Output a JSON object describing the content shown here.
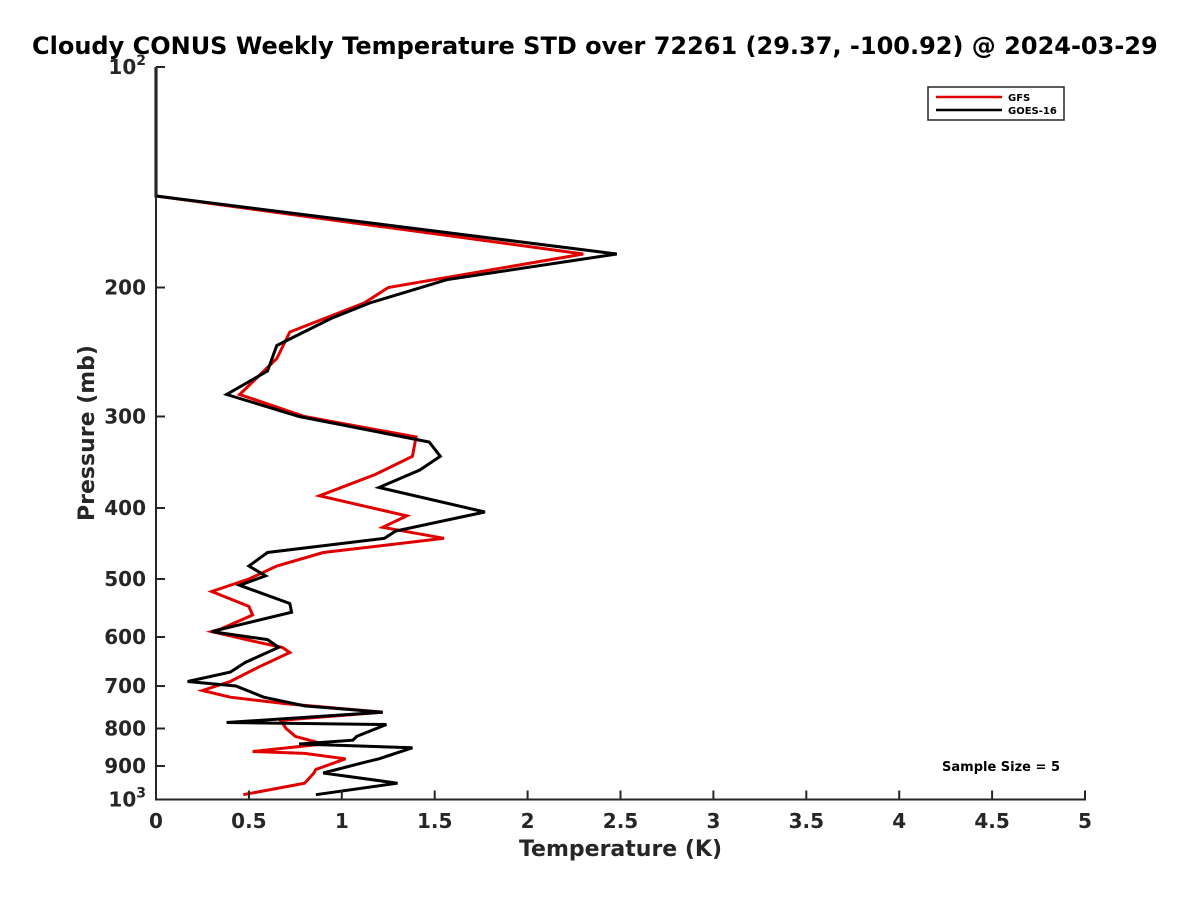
{
  "chart_data": {
    "type": "line",
    "title": "Cloudy CONUS Weekly Temperature STD over 72261 (29.37, -100.92) @ 2024-03-29",
    "xlabel": "Temperature (K)",
    "ylabel": "Pressure (mb)",
    "xlim": [
      0,
      5
    ],
    "ylim": [
      100,
      1000
    ],
    "y_scale": "log",
    "y_reversed": true,
    "x_ticks": [
      "0",
      "0.5",
      "1",
      "1.5",
      "2",
      "2.5",
      "3",
      "3.5",
      "4",
      "4.5",
      "5"
    ],
    "y_ticks": [
      {
        "value": 100,
        "base": "10",
        "exp": "2"
      },
      {
        "value": 200,
        "label": "200"
      },
      {
        "value": 300,
        "label": "300"
      },
      {
        "value": 400,
        "label": "400"
      },
      {
        "value": 500,
        "label": "500"
      },
      {
        "value": 600,
        "label": "600"
      },
      {
        "value": 700,
        "label": "700"
      },
      {
        "value": 800,
        "label": "800"
      },
      {
        "value": 900,
        "label": "900"
      },
      {
        "value": 1000,
        "base": "10",
        "exp": "3"
      }
    ],
    "legend_position": "top-right",
    "grid": false,
    "annotation": "Sample Size = 5",
    "series": [
      {
        "name": "GFS",
        "color": "#e00000",
        "points": [
          [
            0,
            100
          ],
          [
            0,
            150
          ],
          [
            2.3,
            180
          ],
          [
            1.25,
            200
          ],
          [
            1.12,
            210
          ],
          [
            0.72,
            230
          ],
          [
            0.65,
            250
          ],
          [
            0.45,
            280
          ],
          [
            0.8,
            300
          ],
          [
            1.4,
            320
          ],
          [
            1.38,
            340
          ],
          [
            1.18,
            360
          ],
          [
            0.88,
            385
          ],
          [
            1.35,
            410
          ],
          [
            1.22,
            425
          ],
          [
            1.55,
            440
          ],
          [
            0.9,
            460
          ],
          [
            0.65,
            480
          ],
          [
            0.5,
            500
          ],
          [
            0.3,
            520
          ],
          [
            0.5,
            545
          ],
          [
            0.52,
            560
          ],
          [
            0.35,
            585
          ],
          [
            0.3,
            590
          ],
          [
            0.55,
            610
          ],
          [
            0.68,
            620
          ],
          [
            0.72,
            630
          ],
          [
            0.55,
            660
          ],
          [
            0.4,
            690
          ],
          [
            0.25,
            710
          ],
          [
            0.4,
            725
          ],
          [
            0.7,
            740
          ],
          [
            1.22,
            760
          ],
          [
            0.8,
            775
          ],
          [
            0.67,
            780
          ],
          [
            0.7,
            800
          ],
          [
            0.75,
            820
          ],
          [
            0.9,
            840
          ],
          [
            0.52,
            860
          ],
          [
            0.8,
            865
          ],
          [
            1.02,
            880
          ],
          [
            0.86,
            910
          ],
          [
            0.85,
            920
          ],
          [
            0.8,
            950
          ],
          [
            0.47,
            985
          ]
        ]
      },
      {
        "name": "GOES-16",
        "color": "#000000",
        "points": [
          [
            0,
            100
          ],
          [
            0,
            150
          ],
          [
            2.48,
            180
          ],
          [
            1.57,
            195
          ],
          [
            1.15,
            210
          ],
          [
            0.95,
            220
          ],
          [
            0.65,
            240
          ],
          [
            0.6,
            260
          ],
          [
            0.38,
            280
          ],
          [
            0.77,
            300
          ],
          [
            1.47,
            325
          ],
          [
            1.53,
            340
          ],
          [
            1.42,
            355
          ],
          [
            1.2,
            375
          ],
          [
            1.77,
            405
          ],
          [
            1.29,
            430
          ],
          [
            1.23,
            440
          ],
          [
            0.6,
            460
          ],
          [
            0.5,
            480
          ],
          [
            0.59,
            495
          ],
          [
            0.45,
            510
          ],
          [
            0.72,
            540
          ],
          [
            0.73,
            555
          ],
          [
            0.3,
            590
          ],
          [
            0.6,
            605
          ],
          [
            0.66,
            620
          ],
          [
            0.48,
            650
          ],
          [
            0.4,
            670
          ],
          [
            0.17,
            690
          ],
          [
            0.43,
            700
          ],
          [
            0.58,
            725
          ],
          [
            0.8,
            745
          ],
          [
            1.22,
            760
          ],
          [
            0.38,
            785
          ],
          [
            1.24,
            790
          ],
          [
            1.08,
            820
          ],
          [
            1.06,
            830
          ],
          [
            0.77,
            840
          ],
          [
            1.38,
            850
          ],
          [
            1.2,
            880
          ],
          [
            1.12,
            890
          ],
          [
            0.9,
            920
          ],
          [
            1.3,
            950
          ],
          [
            0.86,
            985
          ]
        ]
      }
    ]
  }
}
